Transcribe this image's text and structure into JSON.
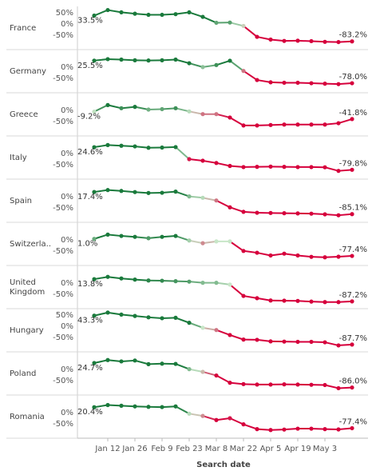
{
  "chart_data": {
    "type": "line",
    "xlabel": "Search date",
    "x": [
      "Jan 5",
      "Jan 12",
      "Jan 19",
      "Jan 26",
      "Feb 2",
      "Feb 9",
      "Feb 16",
      "Feb 23",
      "Mar 1",
      "Mar 8",
      "Mar 15",
      "Mar 22",
      "Mar 29",
      "Apr 5",
      "Apr 12",
      "Apr 19",
      "Apr 26",
      "May 3",
      "May 10",
      "May 17"
    ],
    "x_tick_labels": [
      "Jan 12",
      "Jan 26",
      "Feb 9",
      "Feb 23",
      "Mar 8",
      "Mar 22",
      "Apr 5",
      "Apr 19",
      "May 3"
    ],
    "ytick_labels": {
      "full": [
        "50%",
        "0%",
        "-50%"
      ],
      "compact": [
        "0%",
        "-50%"
      ]
    },
    "color_scale": {
      "high": "#1a7a3c",
      "mid": "#c8e6c8",
      "low": "#d6003c"
    },
    "grid": false,
    "series": [
      {
        "name": "France",
        "first_label": "33.5%",
        "last_label": "-83.2%",
        "ticks": "full",
        "values": [
          33.5,
          58,
          48,
          42,
          37,
          37,
          40,
          48,
          28,
          2,
          3,
          -12,
          -60,
          -72,
          -78,
          -77,
          -79,
          -82,
          -83,
          -80
        ]
      },
      {
        "name": "Germany",
        "first_label": "25.5%",
        "last_label": "-78.0%",
        "ticks": "compact",
        "values": [
          25.5,
          32,
          30,
          27,
          26,
          27,
          30,
          14,
          -3,
          6,
          25,
          -20,
          -60,
          -70,
          -72,
          -72,
          -74,
          -76,
          -78,
          -74
        ]
      },
      {
        "name": "Greece",
        "first_label": "-9.2%",
        "last_label": "-41.8%",
        "ticks": "compact",
        "values": [
          -9.2,
          20,
          6,
          12,
          0,
          2,
          6,
          -8,
          -20,
          -20,
          -35,
          -70,
          -70,
          -68,
          -66,
          -66,
          -66,
          -66,
          -60,
          -41.8
        ]
      },
      {
        "name": "Italy",
        "first_label": "24.6%",
        "last_label": "-79.8%",
        "ticks": "compact",
        "values": [
          24.6,
          34,
          31,
          28,
          22,
          23,
          25,
          -28,
          -35,
          -45,
          -58,
          -63,
          -62,
          -61,
          -62,
          -63,
          -63,
          -64,
          -79.8,
          -75
        ]
      },
      {
        "name": "Spain",
        "first_label": "17.4%",
        "last_label": "-85.1%",
        "ticks": "compact",
        "values": [
          17.4,
          26,
          22,
          17,
          13,
          14,
          19,
          -2,
          -8,
          -20,
          -50,
          -70,
          -74,
          -75,
          -76,
          -77,
          -78,
          -81,
          -85.1,
          -80
        ]
      },
      {
        "name": "Switzerla..",
        "first_label": "1.0%",
        "last_label": "-77.4%",
        "ticks": "compact",
        "values": [
          1.0,
          20,
          14,
          10,
          4,
          10,
          14,
          -6,
          -18,
          -10,
          -10,
          -52,
          -60,
          -72,
          -64,
          -72,
          -78,
          -80,
          -77.4,
          -74
        ]
      },
      {
        "name": "United\nKingdom",
        "first_label": "13.8%",
        "last_label": "-87.2%",
        "ticks": "compact",
        "values": [
          13.8,
          24,
          17,
          12,
          8,
          7,
          5,
          3,
          -2,
          -2,
          -10,
          -60,
          -70,
          -80,
          -81,
          -82,
          -85,
          -87,
          -87.2,
          -84
        ]
      },
      {
        "name": "Hungary",
        "first_label": "43.3%",
        "last_label": "-87.7%",
        "ticks": "full",
        "values": [
          43.3,
          57,
          48,
          42,
          36,
          32,
          34,
          12,
          -10,
          -20,
          -42,
          -62,
          -63,
          -70,
          -71,
          -72,
          -72,
          -74,
          -87.7,
          -84
        ]
      },
      {
        "name": "Poland",
        "first_label": "24.7%",
        "last_label": "-86.0%",
        "ticks": "compact",
        "values": [
          24.7,
          38,
          32,
          36,
          20,
          22,
          21,
          -2,
          -14,
          -30,
          -62,
          -68,
          -70,
          -70,
          -69,
          -70,
          -71,
          -72,
          -86.0,
          -83
        ]
      },
      {
        "name": "Romania",
        "first_label": "20.4%",
        "last_label": "-77.4%",
        "ticks": "compact",
        "values": [
          20.4,
          30,
          27,
          24,
          22,
          21,
          24,
          -8,
          -18,
          -36,
          -28,
          -55,
          -76,
          -80,
          -78,
          -74,
          -74,
          -76,
          -77.4,
          -72
        ]
      }
    ]
  }
}
